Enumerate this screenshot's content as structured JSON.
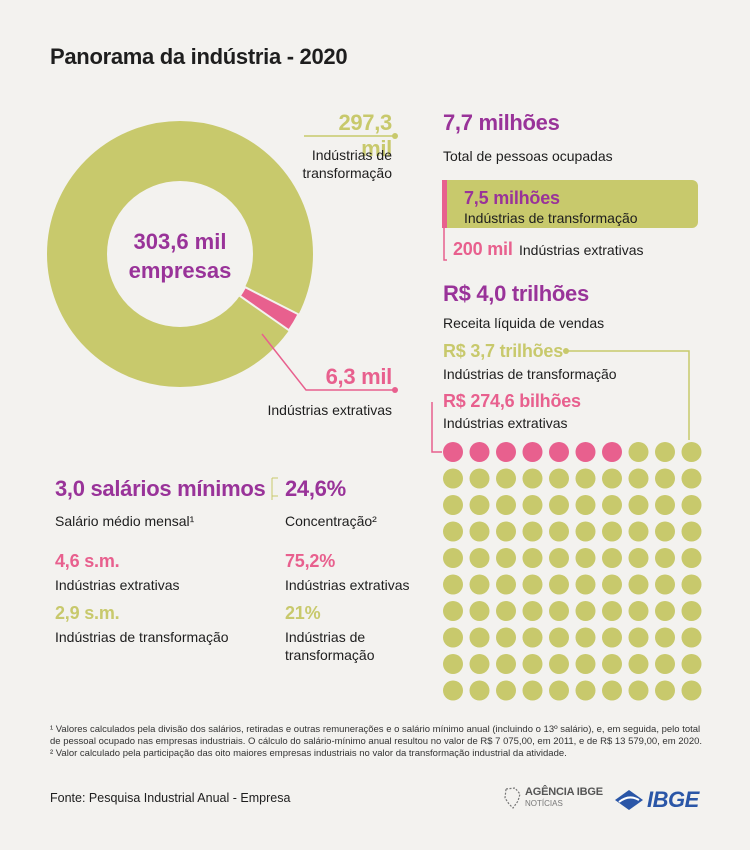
{
  "title": "Panorama da indústria - 2020",
  "donut": {
    "center_value": "303,6 mil",
    "center_label": "empresas",
    "transformacao_value": "297,3 mil",
    "transformacao_label_1": "Indústrias de",
    "transformacao_label_2": "transformação",
    "extrativas_value": "6,3 mil",
    "extrativas_label": "Indústrias extrativas"
  },
  "pessoas": {
    "value": "7,7 milhões",
    "label": "Total de pessoas ocupadas",
    "transformacao_value": "7,5 milhões",
    "transformacao_label": "Indústrias de transformação",
    "extrativas_value": "200 mil",
    "extrativas_label": "Indústrias extrativas"
  },
  "receita": {
    "value": "R$ 4,0 trilhões",
    "label": "Receita líquida de vendas",
    "transformacao_value": "R$ 3,7 trilhões",
    "transformacao_label": "Indústrias de transformação",
    "extrativas_value": "R$ 274,6 bilhões",
    "extrativas_label": "Indústrias extrativas"
  },
  "salario": {
    "value": "3,0 salários mínimos",
    "label": "Salário médio mensal¹",
    "extrativas_value": "4,6 s.m.",
    "extrativas_label": "Indústrias extrativas",
    "transformacao_value": "2,9 s.m.",
    "transformacao_label": "Indústrias de transformação"
  },
  "concentracao": {
    "value": "24,6%",
    "label": "Concentração²",
    "extrativas_value": "75,2%",
    "extrativas_label": "Indústrias extrativas",
    "transformacao_value": "21%",
    "transformacao_label_1": "Indústrias de",
    "transformacao_label_2": "transformação"
  },
  "footnotes": {
    "note1_line1": "¹ Valores calculados pela divisão dos salários, retiradas e outras remunerações e o salário mínimo anual (incluindo o 13º salário), e, em seguida, pelo total",
    "note1_line2": "de pessoal ocupado nas empresas industriais. O cálculo do salário-mínimo anual resultou no valor de R$ 7 075,00, em 2011, e de R$ 13 579,00, em 2020.",
    "note2": "² Valor calculado pela participação das oito maiores empresas industriais no valor da transformação industrial da atividade."
  },
  "source": "Fonte: Pesquisa Industrial Anual - Empresa",
  "logos": {
    "agencia_line1": "AGÊNCIA IBGE",
    "agencia_line2": "NOTÍCIAS",
    "ibge": "IBGE"
  },
  "colors": {
    "green": "#c8c96c",
    "pink": "#e8608e",
    "purple": "#993399",
    "background": "#f3f2ef"
  },
  "chart_data": [
    {
      "type": "pie",
      "title": "303,6 mil empresas",
      "categories": [
        "Indústrias de transformação",
        "Indústrias extrativas"
      ],
      "values": [
        297.3,
        6.3
      ],
      "unit": "mil empresas"
    },
    {
      "type": "bar",
      "title": "Total de pessoas ocupadas",
      "categories": [
        "Indústrias de transformação",
        "Indústrias extrativas"
      ],
      "values": [
        7.5,
        0.2
      ],
      "unit": "milhões"
    },
    {
      "type": "waffle",
      "title": "Receita líquida de vendas",
      "categories": [
        "Indústrias extrativas",
        "Indústrias de transformação"
      ],
      "values": [
        274.6,
        3700
      ],
      "unit": "R$ bilhões",
      "grid": {
        "rows": 10,
        "cols": 10,
        "highlighted_cells": 7
      }
    }
  ]
}
